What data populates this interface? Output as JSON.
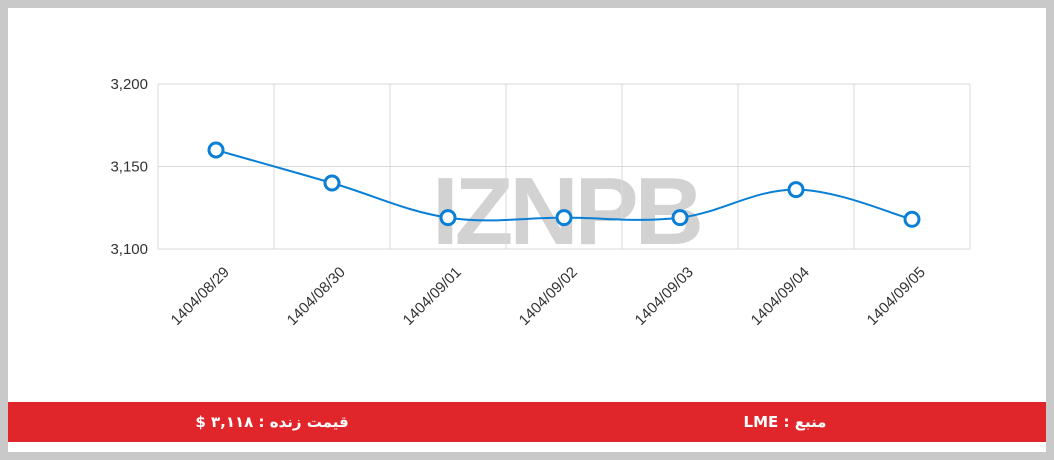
{
  "chart_data": {
    "type": "line",
    "watermark": "IZNPB",
    "categories": [
      "1404/08/29",
      "1404/08/30",
      "1404/09/01",
      "1404/09/02",
      "1404/09/03",
      "1404/09/04",
      "1404/09/05"
    ],
    "series": [
      {
        "color": "#0a7fd6",
        "values": [
          3160,
          3140,
          3119,
          3119,
          3119,
          3136,
          3118
        ]
      }
    ],
    "ylim": [
      3100,
      3200
    ],
    "yticks": [
      {
        "value": 3100,
        "label": "3,100"
      },
      {
        "value": 3150,
        "label": "3,150"
      },
      {
        "value": 3200,
        "label": "3,200"
      }
    ],
    "grid": true
  },
  "footer": {
    "price": "قیمت زنده : ۳,۱۱۸ $",
    "source": "منبع : LME"
  }
}
